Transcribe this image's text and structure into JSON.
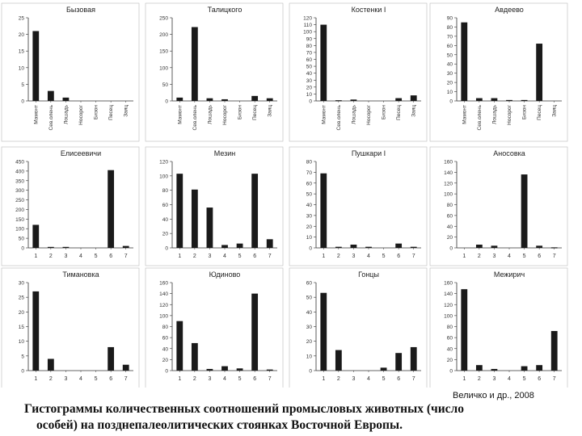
{
  "figure": {
    "credit": "Величко и др., 2008",
    "caption_line1": "Гистограммы количественных соотношений промысловых животных (число",
    "caption_line2": "особей) на позднепалеолитических стоянках Восточной Европы."
  },
  "chart_data": [
    {
      "type": "bar",
      "title": "Бызовая",
      "categories": [
        "Мамонт",
        "Сев.олень",
        "Лошадь",
        "Носорог",
        "Бизон",
        "Песец",
        "Заяц"
      ],
      "values": [
        21,
        3,
        1,
        0,
        0,
        0,
        0
      ],
      "ylim": [
        0,
        25
      ],
      "yticks": [
        0,
        5,
        10,
        15,
        20,
        25
      ]
    },
    {
      "type": "bar",
      "title": "Талицкого",
      "categories": [
        "Мамонт",
        "Сев.олень",
        "Лошадь",
        "Носорог",
        "Бизон",
        "Песец",
        "Заяц"
      ],
      "values": [
        10,
        222,
        8,
        5,
        0,
        15,
        8
      ],
      "ylim": [
        0,
        250
      ],
      "yticks": [
        0,
        50,
        100,
        150,
        200,
        250
      ]
    },
    {
      "type": "bar",
      "title": "Костенки I",
      "categories": [
        "Мамонт",
        "Сев.олень",
        "Лошадь",
        "Носорог",
        "Бизон",
        "Песец",
        "Заяц"
      ],
      "values": [
        110,
        1,
        2,
        0,
        0,
        4,
        8
      ],
      "ylim": [
        0,
        120
      ],
      "yticks": [
        0,
        10,
        20,
        30,
        40,
        50,
        60,
        70,
        80,
        90,
        100,
        110,
        120
      ]
    },
    {
      "type": "bar",
      "title": "Авдеево",
      "categories": [
        "Мамонт",
        "Сев.олень",
        "Лошадь",
        "Носорог",
        "Бизон",
        "Песец",
        "Заяц"
      ],
      "values": [
        85,
        3,
        3,
        1,
        1,
        62,
        0
      ],
      "ylim": [
        0,
        90
      ],
      "yticks": [
        0,
        10,
        20,
        30,
        40,
        50,
        60,
        70,
        80,
        90
      ]
    },
    {
      "type": "bar",
      "title": "Елисеевичи",
      "categories": [
        "1",
        "2",
        "3",
        "4",
        "5",
        "6",
        "7"
      ],
      "values": [
        120,
        5,
        5,
        0,
        0,
        405,
        10
      ],
      "ylim": [
        0,
        450
      ],
      "yticks": [
        0,
        50,
        100,
        150,
        200,
        250,
        300,
        350,
        400,
        450
      ]
    },
    {
      "type": "bar",
      "title": "Мезин",
      "categories": [
        "1",
        "2",
        "3",
        "4",
        "5",
        "6",
        "7"
      ],
      "values": [
        103,
        81,
        56,
        4,
        6,
        103,
        12
      ],
      "ylim": [
        0,
        120
      ],
      "yticks": [
        0,
        20,
        40,
        60,
        80,
        100,
        120
      ]
    },
    {
      "type": "bar",
      "title": "Пушкари I",
      "categories": [
        "1",
        "2",
        "3",
        "4",
        "5",
        "6",
        "7"
      ],
      "values": [
        69,
        1,
        3,
        1,
        0,
        4,
        1
      ],
      "ylim": [
        0,
        80
      ],
      "yticks": [
        0,
        10,
        20,
        30,
        40,
        50,
        60,
        70,
        80
      ]
    },
    {
      "type": "bar",
      "title": "Аносовка",
      "categories": [
        "1",
        "2",
        "3",
        "4",
        "5",
        "6",
        "7"
      ],
      "values": [
        0,
        6,
        4,
        0,
        136,
        4,
        1
      ],
      "ylim": [
        0,
        160
      ],
      "yticks": [
        0,
        20,
        40,
        60,
        80,
        100,
        120,
        140,
        160
      ]
    },
    {
      "type": "bar",
      "title": "Тимановка",
      "categories": [
        "1",
        "2",
        "3",
        "4",
        "5",
        "6",
        "7"
      ],
      "values": [
        27,
        4,
        0,
        0,
        0,
        8,
        2
      ],
      "ylim": [
        0,
        30
      ],
      "yticks": [
        0,
        5,
        10,
        15,
        20,
        25,
        30
      ]
    },
    {
      "type": "bar",
      "title": "Юдиново",
      "categories": [
        "1",
        "2",
        "3",
        "4",
        "5",
        "6",
        "7"
      ],
      "values": [
        90,
        50,
        3,
        8,
        4,
        140,
        2
      ],
      "ylim": [
        0,
        160
      ],
      "yticks": [
        0,
        20,
        40,
        60,
        80,
        100,
        120,
        140,
        160
      ]
    },
    {
      "type": "bar",
      "title": "Гонцы",
      "categories": [
        "1",
        "2",
        "3",
        "4",
        "5",
        "6",
        "7"
      ],
      "values": [
        53,
        14,
        0,
        0,
        2,
        12,
        16
      ],
      "ylim": [
        0,
        60
      ],
      "yticks": [
        0,
        10,
        20,
        30,
        40,
        50,
        60
      ]
    },
    {
      "type": "bar",
      "title": "Межирич",
      "categories": [
        "1",
        "2",
        "3",
        "4",
        "5",
        "6",
        "7"
      ],
      "values": [
        148,
        10,
        3,
        0,
        8,
        10,
        72
      ],
      "ylim": [
        0,
        160
      ],
      "yticks": [
        0,
        20,
        40,
        60,
        80,
        100,
        120,
        140,
        160
      ]
    }
  ]
}
